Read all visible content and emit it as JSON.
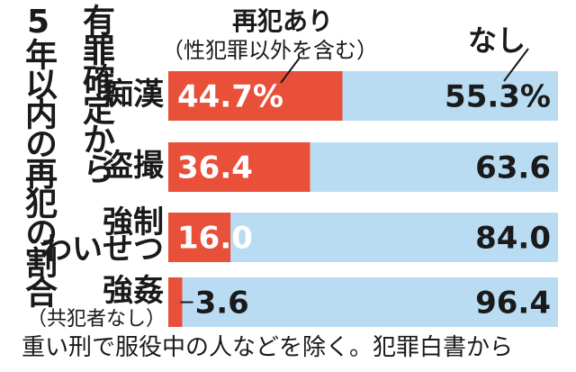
{
  "chart_data": {
    "type": "bar",
    "stacked": true,
    "orientation": "horizontal",
    "title": "有罪確定から5年以内の再犯の割合",
    "categories": [
      "痴漢",
      "盗撮",
      "強制わいせつ",
      "強姦"
    ],
    "category_lines": [
      [
        "痴漢"
      ],
      [
        "盗撮"
      ],
      [
        "強制",
        "わいせつ"
      ],
      [
        "強姦"
      ]
    ],
    "category_notes": [
      "",
      "",
      "",
      "（共犯者なし）"
    ],
    "series": [
      {
        "name": "再犯あり",
        "note": "（性犯罪以外を含む）",
        "values": [
          44.7,
          36.4,
          16.0,
          3.6
        ],
        "labels": [
          "44.7%",
          "36.4",
          "16.0",
          "3.6"
        ],
        "color": "#e8503a"
      },
      {
        "name": "なし",
        "values": [
          55.3,
          63.6,
          84.0,
          96.4
        ],
        "labels": [
          "55.3%",
          "63.6",
          "84.0",
          "96.4"
        ],
        "color": "#b9dcf3"
      }
    ],
    "xlim": [
      0,
      100
    ],
    "legend": "top",
    "footnote": "重い刑で服役中の人などを除く。犯罪白書から"
  },
  "title_columns": [
    "有罪確定から",
    "5年以内の再犯の割合"
  ],
  "colors": {
    "recidivism": "#e8503a",
    "none": "#b9dcf3",
    "text": "#1a1a1a",
    "label_light": "#ffffff"
  }
}
